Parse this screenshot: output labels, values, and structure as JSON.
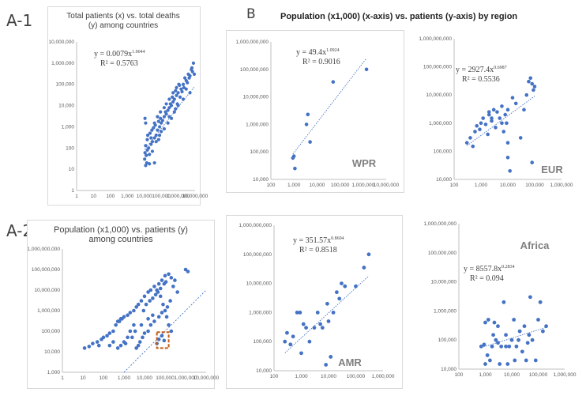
{
  "labels": {
    "a1": "A-1",
    "a2": "A-2",
    "b": "B"
  },
  "b_title": "Population (x1,000) (x-axis) vs. patients (y-axis)  by region",
  "chart_data": [
    {
      "id": "a1",
      "type": "scatter",
      "title": "Total patients (x) vs. total deaths (y) among countries",
      "xlim": [
        1,
        10000000
      ],
      "ylim": [
        1,
        10000000
      ],
      "xlog": true,
      "ylog": true,
      "xticks": [
        "1",
        "10",
        "100",
        "1,000",
        "10,000",
        "100,000",
        "1,000,000",
        "10,000,000"
      ],
      "yticks": [
        "1",
        "10",
        "100",
        "1,000",
        "10,000",
        "100,000",
        "1,000,000",
        "10,000,000"
      ],
      "equation": "y = 0.0079x",
      "exponent": "1.0044",
      "r2": "R² = 0.5763",
      "trend": {
        "a": 0.0079,
        "b": 1.0044
      },
      "points": [
        [
          12000,
          15
        ],
        [
          14000,
          20
        ],
        [
          20000,
          18
        ],
        [
          10500,
          30
        ],
        [
          13000,
          45
        ],
        [
          11000,
          60
        ],
        [
          15000,
          80
        ],
        [
          18000,
          100
        ],
        [
          12000,
          130
        ],
        [
          25000,
          150
        ],
        [
          30000,
          200
        ],
        [
          40000,
          300
        ],
        [
          50000,
          400
        ],
        [
          15000,
          250
        ],
        [
          22000,
          500
        ],
        [
          60000,
          700
        ],
        [
          80000,
          1000
        ],
        [
          100000,
          1500
        ],
        [
          120000,
          2000
        ],
        [
          150000,
          3000
        ],
        [
          200000,
          4000
        ],
        [
          250000,
          6000
        ],
        [
          300000,
          8000
        ],
        [
          400000,
          10000
        ],
        [
          500000,
          15000
        ],
        [
          600000,
          20000
        ],
        [
          800000,
          30000
        ],
        [
          1000000,
          40000
        ],
        [
          1500000,
          60000
        ],
        [
          2000000,
          100000
        ],
        [
          3000000,
          150000
        ],
        [
          5000000,
          250000
        ],
        [
          7000000,
          400000
        ],
        [
          8000000,
          1000000
        ],
        [
          6000000,
          500000
        ],
        [
          4000000,
          300000
        ],
        [
          2500000,
          200000
        ],
        [
          1200000,
          90000
        ],
        [
          700000,
          50000
        ],
        [
          450000,
          25000
        ],
        [
          350000,
          12000
        ],
        [
          180000,
          5000
        ],
        [
          90000,
          2500
        ],
        [
          70000,
          1800
        ],
        [
          45000,
          1200
        ],
        [
          35000,
          900
        ],
        [
          28000,
          700
        ],
        [
          16000,
          400
        ],
        [
          11000,
          2500
        ],
        [
          12000,
          1500
        ],
        [
          40000,
          1500
        ],
        [
          60000,
          3000
        ],
        [
          90000,
          5000
        ],
        [
          150000,
          8000
        ],
        [
          200000,
          12000
        ],
        [
          300000,
          20000
        ],
        [
          500000,
          40000
        ],
        [
          800000,
          70000
        ],
        [
          1100000,
          100000
        ],
        [
          3000000,
          60000
        ],
        [
          5000000,
          40000
        ],
        [
          2000000,
          20000
        ],
        [
          1000000,
          10000
        ],
        [
          600000,
          5000
        ],
        [
          300000,
          3000
        ],
        [
          150000,
          800
        ],
        [
          80000,
          400
        ],
        [
          50000,
          200
        ],
        [
          40000,
          20
        ],
        [
          20000,
          50
        ],
        [
          30000,
          70
        ],
        [
          25000,
          300
        ],
        [
          70000,
          250
        ],
        [
          100000,
          600
        ],
        [
          250000,
          1500
        ],
        [
          400000,
          2500
        ],
        [
          700000,
          7000
        ],
        [
          900000,
          12000
        ],
        [
          1300000,
          25000
        ],
        [
          1700000,
          45000
        ],
        [
          2200000,
          70000
        ],
        [
          3500000,
          120000
        ],
        [
          4500000,
          200000
        ],
        [
          6500000,
          600000
        ],
        [
          9000000,
          300000
        ]
      ]
    },
    {
      "id": "a2",
      "type": "scatter",
      "title": "Population (x1,000) vs. patients (y) among countries",
      "xlim": [
        1,
        10000000
      ],
      "ylim": [
        1000,
        1000000000
      ],
      "xlog": true,
      "ylog": true,
      "xticks": [
        "1",
        "10",
        "100",
        "1,000",
        "10,000",
        "100,000",
        "1,000,000",
        "10,000,000"
      ],
      "yticks": [
        "1,000",
        "10,000",
        "100,000",
        "1,000,000",
        "10,000,000",
        "100,000,000",
        "1,000,000,000"
      ],
      "identity_line": true,
      "highlight_box": {
        "x": [
          40000,
          150000
        ],
        "y": [
          15000,
          90000
        ]
      },
      "points": [
        [
          12,
          15000
        ],
        [
          20,
          18000
        ],
        [
          30,
          25000
        ],
        [
          50,
          30000
        ],
        [
          60,
          20000
        ],
        [
          80,
          40000
        ],
        [
          100,
          50000
        ],
        [
          150,
          60000
        ],
        [
          200,
          80000
        ],
        [
          300,
          100000
        ],
        [
          400,
          200000
        ],
        [
          500,
          300000
        ],
        [
          700,
          400000
        ],
        [
          1000,
          500000
        ],
        [
          1500,
          600000
        ],
        [
          2000,
          800000
        ],
        [
          3000,
          1000000
        ],
        [
          4000,
          1500000
        ],
        [
          5000,
          2000000
        ],
        [
          7000,
          3000000
        ],
        [
          10000,
          5000000
        ],
        [
          15000,
          8000000
        ],
        [
          20000,
          10000000
        ],
        [
          30000,
          15000000
        ],
        [
          50000,
          20000000
        ],
        [
          70000,
          30000000
        ],
        [
          100000,
          50000000
        ],
        [
          150000,
          60000000
        ],
        [
          200000,
          40000000
        ],
        [
          300000,
          30000000
        ],
        [
          1000000,
          100000000
        ],
        [
          1300000,
          80000000
        ],
        [
          40000,
          10000000
        ],
        [
          60000,
          5000000
        ],
        [
          80000,
          2000000
        ],
        [
          100000,
          1000000
        ],
        [
          120000,
          500000
        ],
        [
          150000,
          200000
        ],
        [
          200000,
          100000
        ],
        [
          50000,
          500000
        ],
        [
          30000,
          300000
        ],
        [
          20000,
          200000
        ],
        [
          15000,
          100000
        ],
        [
          10000,
          80000
        ],
        [
          8000,
          50000
        ],
        [
          6000,
          30000
        ],
        [
          5000,
          20000
        ],
        [
          4000,
          15000
        ],
        [
          3000,
          200000
        ],
        [
          2000,
          100000
        ],
        [
          1500,
          50000
        ],
        [
          1000,
          30000
        ],
        [
          700,
          20000
        ],
        [
          500,
          15000
        ],
        [
          300,
          30000
        ],
        [
          200,
          20000
        ],
        [
          9000,
          1000000
        ],
        [
          12000,
          2000000
        ],
        [
          18000,
          3000000
        ],
        [
          25000,
          4000000
        ],
        [
          35000,
          6000000
        ],
        [
          45000,
          8000000
        ],
        [
          60000,
          12000000
        ],
        [
          90000,
          20000000
        ],
        [
          110000,
          25000000
        ],
        [
          250000,
          15000000
        ],
        [
          400000,
          8000000
        ],
        [
          180000,
          3000000
        ],
        [
          130000,
          1500000
        ],
        [
          70000,
          800000
        ],
        [
          25000,
          600000
        ],
        [
          15000,
          400000
        ],
        [
          7000,
          200000
        ],
        [
          3500,
          100000
        ],
        [
          2500,
          50000
        ],
        [
          1200,
          25000
        ],
        [
          800,
          400000
        ],
        [
          600,
          300000
        ],
        [
          40000,
          25000
        ],
        [
          50000,
          40000
        ],
        [
          70000,
          60000
        ],
        [
          90000,
          35000
        ]
      ]
    },
    {
      "id": "wpr",
      "type": "scatter",
      "region": "WPR",
      "xlim": [
        100,
        10000000
      ],
      "ylim": [
        10000,
        1000000000
      ],
      "xlog": true,
      "ylog": true,
      "xticks": [
        "100",
        "1,000",
        "10,000",
        "100,000",
        "1,000,000",
        "10,000,000"
      ],
      "yticks": [
        "10,000",
        "100,000",
        "1,000,000",
        "10,000,000",
        "100,000,000",
        "1,000,000,000"
      ],
      "equation": "y = 49.4x",
      "exponent": "1.0924",
      "r2": "R² = 0.9016",
      "trend": {
        "a": 49.4,
        "b": 1.0924
      },
      "points": [
        [
          900,
          60000
        ],
        [
          1000,
          70000
        ],
        [
          1100,
          25000
        ],
        [
          3500,
          1000000
        ],
        [
          4000,
          2300000
        ],
        [
          5000,
          230000
        ],
        [
          50000,
          35000000
        ],
        [
          1400000,
          100000000
        ]
      ]
    },
    {
      "id": "eur",
      "type": "scatter",
      "region": "EUR",
      "xlim": [
        100,
        1000000
      ],
      "ylim": [
        10000,
        1000000000
      ],
      "xlog": true,
      "ylog": true,
      "xticks": [
        "100",
        "1,000",
        "10,000",
        "100,000",
        "1,000,000"
      ],
      "yticks": [
        "10,000",
        "100,000",
        "1,000,000",
        "10,000,000",
        "100,000,000",
        "1,000,000,000"
      ],
      "equation": "y = 2927.4x",
      "exponent": "0.6987",
      "r2": "R² = 0.5536",
      "trend": {
        "a": 2927.4,
        "b": 0.6987
      },
      "points": [
        [
          300,
          200000
        ],
        [
          400,
          300000
        ],
        [
          500,
          150000
        ],
        [
          600,
          500000
        ],
        [
          700,
          800000
        ],
        [
          900,
          600000
        ],
        [
          1000,
          1000000
        ],
        [
          1200,
          1500000
        ],
        [
          1500,
          900000
        ],
        [
          2000,
          2000000
        ],
        [
          2500,
          1200000
        ],
        [
          3000,
          3000000
        ],
        [
          4000,
          2500000
        ],
        [
          5000,
          1500000
        ],
        [
          6000,
          4000000
        ],
        [
          7000,
          500000
        ],
        [
          8000,
          2000000
        ],
        [
          9000,
          1000000
        ],
        [
          10000,
          200000
        ],
        [
          10000,
          3000000
        ],
        [
          10000,
          60000
        ],
        [
          12000,
          20000
        ],
        [
          15000,
          8000000
        ],
        [
          20000,
          5000000
        ],
        [
          30000,
          300000
        ],
        [
          40000,
          3000000
        ],
        [
          50000,
          10000000
        ],
        [
          60000,
          30000000
        ],
        [
          70000,
          40000000
        ],
        [
          80000,
          25000000
        ],
        [
          90000,
          15000000
        ],
        [
          100000,
          20000000
        ],
        [
          80000,
          40000
        ],
        [
          2500,
          1500000
        ],
        [
          3500,
          700000
        ],
        [
          1800,
          400000
        ],
        [
          6000,
          1000000
        ],
        [
          2000,
          2500000
        ]
      ]
    },
    {
      "id": "amr",
      "type": "scatter",
      "region": "AMR",
      "xlim": [
        100,
        1000000
      ],
      "ylim": [
        10000,
        1000000000
      ],
      "xlog": true,
      "ylog": true,
      "xticks": [
        "100",
        "1,000",
        "10,000",
        "100,000",
        "1,000,000"
      ],
      "yticks": [
        "10,000",
        "100,000",
        "1,000,000",
        "10,000,000",
        "100,000,000",
        "1,000,000,000"
      ],
      "equation": "y = 351.57x",
      "exponent": "0.8604",
      "r2": "R² = 0.8518",
      "trend": {
        "a": 351.57,
        "b": 0.8604
      },
      "points": [
        [
          250,
          100000
        ],
        [
          300,
          200000
        ],
        [
          400,
          80000
        ],
        [
          500,
          150000
        ],
        [
          700,
          1000000
        ],
        [
          900,
          1000000
        ],
        [
          1000,
          40000
        ],
        [
          1200,
          400000
        ],
        [
          1500,
          300000
        ],
        [
          2000,
          100000
        ],
        [
          3000,
          300000
        ],
        [
          4000,
          1000000
        ],
        [
          5000,
          400000
        ],
        [
          6000,
          300000
        ],
        [
          8000,
          16000
        ],
        [
          9000,
          2000000
        ],
        [
          10000,
          500000
        ],
        [
          12000,
          30000
        ],
        [
          15000,
          1000000
        ],
        [
          20000,
          5000000
        ],
        [
          30000,
          10000000
        ],
        [
          40000,
          8000000
        ],
        [
          100000,
          8000000
        ],
        [
          200000,
          35000000
        ],
        [
          300000,
          100000000
        ],
        [
          25000,
          3000000
        ]
      ]
    },
    {
      "id": "africa",
      "type": "scatter",
      "region": "Africa",
      "xlim": [
        100,
        1000000
      ],
      "ylim": [
        10000,
        1000000000
      ],
      "xlog": true,
      "ylog": true,
      "xticks": [
        "100",
        "1,000",
        "10,000",
        "100,000",
        "1,000,000"
      ],
      "yticks": [
        "10,000",
        "100,000",
        "1,000,000",
        "10,000,000",
        "100,000,000",
        "1,000,000,000"
      ],
      "equation": "y = 8557.8x",
      "exponent": "0.2834",
      "r2": "R² = 0.094",
      "trend": {
        "a": 8557.8,
        "b": 0.2834
      },
      "points": [
        [
          900,
          70000
        ],
        [
          1000,
          400000
        ],
        [
          1200,
          30000
        ],
        [
          1500,
          20000
        ],
        [
          1800,
          60000
        ],
        [
          2000,
          150000
        ],
        [
          2200,
          400000
        ],
        [
          2500,
          100000
        ],
        [
          3000,
          300000
        ],
        [
          3500,
          15000
        ],
        [
          4000,
          60000
        ],
        [
          5000,
          2000000
        ],
        [
          6000,
          150000
        ],
        [
          7000,
          15000
        ],
        [
          8000,
          60000
        ],
        [
          10000,
          100000
        ],
        [
          12000,
          500000
        ],
        [
          13000,
          20000
        ],
        [
          15000,
          60000
        ],
        [
          18000,
          100000
        ],
        [
          20000,
          200000
        ],
        [
          25000,
          40000
        ],
        [
          30000,
          300000
        ],
        [
          35000,
          20000
        ],
        [
          40000,
          80000
        ],
        [
          45000,
          150000
        ],
        [
          50000,
          3000000
        ],
        [
          60000,
          100000
        ],
        [
          80000,
          20000
        ],
        [
          100000,
          500000
        ],
        [
          120000,
          2000000
        ],
        [
          150000,
          200000
        ],
        [
          200000,
          300000
        ],
        [
          6000,
          60000
        ],
        [
          1000,
          15000
        ],
        [
          3000,
          80000
        ],
        [
          700,
          60000
        ],
        [
          1300,
          500000
        ]
      ]
    }
  ]
}
